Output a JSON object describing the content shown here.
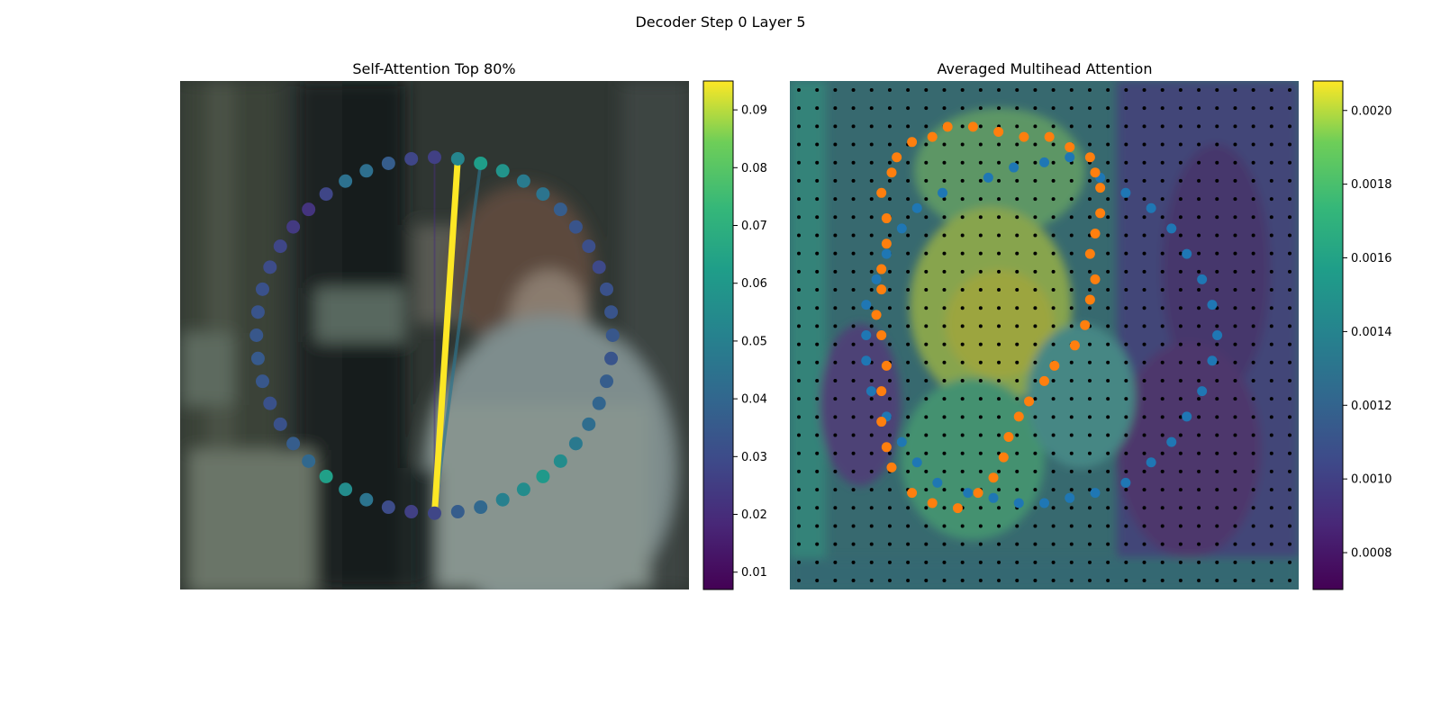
{
  "figure": {
    "suptitle": "Decoder Step 0 Layer 5"
  },
  "chart_data": [
    {
      "type": "scatter",
      "title": "Self-Attention Top 80%",
      "background": "blurred photo",
      "points": {
        "count": 48,
        "xcenter": 0.5,
        "ycenter": 0.5,
        "values": [
          0.052,
          0.062,
          0.058,
          0.048,
          0.045,
          0.036,
          0.033,
          0.031,
          0.029,
          0.032,
          0.033,
          0.034,
          0.033,
          0.036,
          0.039,
          0.042,
          0.047,
          0.055,
          0.06,
          0.055,
          0.05,
          0.04,
          0.036,
          0.028,
          0.026,
          0.03,
          0.045,
          0.055,
          0.063,
          0.04,
          0.036,
          0.032,
          0.032,
          0.034,
          0.035,
          0.034,
          0.033,
          0.032,
          0.03,
          0.028,
          0.024,
          0.022,
          0.028,
          0.044,
          0.043,
          0.036,
          0.028,
          0.026
        ]
      },
      "lines": [
        {
          "from": 0,
          "to": 23,
          "value": 0.095
        },
        {
          "from": 1,
          "to": 23,
          "value": 0.045
        },
        {
          "from": 47,
          "to": 23,
          "value": 0.02
        }
      ],
      "colorbar": {
        "vmin": 0.007,
        "vmax": 0.095,
        "ticks": [
          "0.01",
          "0.02",
          "0.03",
          "0.04",
          "0.05",
          "0.06",
          "0.07",
          "0.08",
          "0.09"
        ]
      }
    },
    {
      "type": "heatmap",
      "title": "Averaged Multihead Attention",
      "grid": {
        "rows": 28,
        "cols": 28
      },
      "series": [
        {
          "color": "#1f77b4",
          "points": [
            [
              0.55,
              0.15
            ],
            [
              0.5,
              0.16
            ],
            [
              0.44,
              0.17
            ],
            [
              0.39,
              0.19
            ],
            [
              0.3,
              0.22
            ],
            [
              0.25,
              0.25
            ],
            [
              0.22,
              0.29
            ],
            [
              0.19,
              0.34
            ],
            [
              0.17,
              0.39
            ],
            [
              0.15,
              0.44
            ],
            [
              0.15,
              0.5
            ],
            [
              0.15,
              0.55
            ],
            [
              0.16,
              0.61
            ],
            [
              0.19,
              0.66
            ],
            [
              0.22,
              0.71
            ],
            [
              0.25,
              0.75
            ],
            [
              0.29,
              0.79
            ],
            [
              0.35,
              0.81
            ],
            [
              0.4,
              0.82
            ],
            [
              0.45,
              0.83
            ],
            [
              0.5,
              0.83
            ],
            [
              0.55,
              0.82
            ],
            [
              0.6,
              0.81
            ],
            [
              0.66,
              0.79
            ],
            [
              0.71,
              0.75
            ],
            [
              0.75,
              0.71
            ],
            [
              0.78,
              0.66
            ],
            [
              0.81,
              0.61
            ],
            [
              0.83,
              0.55
            ],
            [
              0.84,
              0.5
            ],
            [
              0.83,
              0.44
            ],
            [
              0.81,
              0.39
            ],
            [
              0.78,
              0.34
            ],
            [
              0.75,
              0.29
            ],
            [
              0.71,
              0.25
            ],
            [
              0.66,
              0.22
            ],
            [
              0.61,
              0.19
            ]
          ]
        },
        {
          "color": "#ff7f0e",
          "points": [
            [
              0.41,
              0.1
            ],
            [
              0.46,
              0.11
            ],
            [
              0.51,
              0.11
            ],
            [
              0.55,
              0.13
            ],
            [
              0.59,
              0.15
            ],
            [
              0.6,
              0.18
            ],
            [
              0.61,
              0.21
            ],
            [
              0.61,
              0.26
            ],
            [
              0.6,
              0.3
            ],
            [
              0.59,
              0.34
            ],
            [
              0.6,
              0.39
            ],
            [
              0.59,
              0.43
            ],
            [
              0.58,
              0.48
            ],
            [
              0.56,
              0.52
            ],
            [
              0.52,
              0.56
            ],
            [
              0.5,
              0.59
            ],
            [
              0.47,
              0.63
            ],
            [
              0.45,
              0.66
            ],
            [
              0.43,
              0.7
            ],
            [
              0.42,
              0.74
            ],
            [
              0.4,
              0.78
            ],
            [
              0.37,
              0.81
            ],
            [
              0.33,
              0.84
            ],
            [
              0.28,
              0.83
            ],
            [
              0.24,
              0.81
            ],
            [
              0.2,
              0.76
            ],
            [
              0.19,
              0.72
            ],
            [
              0.18,
              0.67
            ],
            [
              0.18,
              0.61
            ],
            [
              0.19,
              0.56
            ],
            [
              0.18,
              0.5
            ],
            [
              0.17,
              0.46
            ],
            [
              0.18,
              0.41
            ],
            [
              0.18,
              0.37
            ],
            [
              0.19,
              0.32
            ],
            [
              0.19,
              0.27
            ],
            [
              0.18,
              0.22
            ],
            [
              0.2,
              0.18
            ],
            [
              0.21,
              0.15
            ],
            [
              0.24,
              0.12
            ],
            [
              0.28,
              0.11
            ],
            [
              0.31,
              0.09
            ],
            [
              0.36,
              0.09
            ]
          ]
        }
      ],
      "colorbar": {
        "vmin": 0.0007,
        "vmax": 0.00208,
        "ticks": [
          "0.0008",
          "0.0010",
          "0.0012",
          "0.0014",
          "0.0016",
          "0.0018",
          "0.0020"
        ]
      }
    }
  ]
}
